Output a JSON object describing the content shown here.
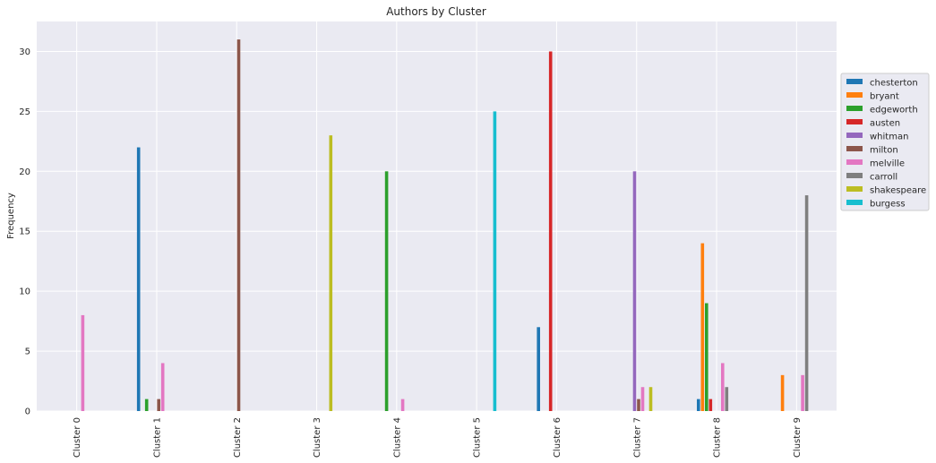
{
  "chart_data": {
    "type": "bar",
    "title": "Authors by Cluster",
    "xlabel": "",
    "ylabel": "Frequency",
    "categories": [
      "Cluster 0",
      "Cluster 1",
      "Cluster 2",
      "Cluster 3",
      "Cluster 4",
      "Cluster 5",
      "Cluster 6",
      "Cluster 7",
      "Cluster 8",
      "Cluster 9"
    ],
    "ylim": [
      0,
      32.5
    ],
    "yticks": [
      0,
      5,
      10,
      15,
      20,
      25,
      30
    ],
    "grid": true,
    "legend_position": "right",
    "background": "#eaeaf2",
    "series": [
      {
        "name": "chesterton",
        "color": "#1f77b4",
        "values": [
          0,
          22,
          0,
          0,
          0,
          0,
          7,
          0,
          1,
          0
        ]
      },
      {
        "name": "bryant",
        "color": "#ff7f0e",
        "values": [
          0,
          0,
          0,
          0,
          0,
          0,
          0,
          0,
          14,
          3
        ]
      },
      {
        "name": "edgeworth",
        "color": "#2ca02c",
        "values": [
          0,
          1,
          0,
          0,
          20,
          0,
          0,
          0,
          9,
          0
        ]
      },
      {
        "name": "austen",
        "color": "#d62728",
        "values": [
          0,
          0,
          0,
          0,
          0,
          0,
          30,
          0,
          1,
          0
        ]
      },
      {
        "name": "whitman",
        "color": "#9467bd",
        "values": [
          0,
          0,
          0,
          0,
          0,
          0,
          0,
          20,
          0,
          0
        ]
      },
      {
        "name": "milton",
        "color": "#8c564b",
        "values": [
          0,
          1,
          31,
          0,
          0,
          0,
          0,
          1,
          0,
          0
        ]
      },
      {
        "name": "melville",
        "color": "#e377c2",
        "values": [
          8,
          4,
          0,
          0,
          1,
          0,
          0,
          2,
          4,
          3
        ]
      },
      {
        "name": "carroll",
        "color": "#7f7f7f",
        "values": [
          0,
          0,
          0,
          0,
          0,
          0,
          0,
          0,
          2,
          18
        ]
      },
      {
        "name": "shakespeare",
        "color": "#bcbd22",
        "values": [
          0,
          0,
          0,
          23,
          0,
          0,
          0,
          2,
          0,
          0
        ]
      },
      {
        "name": "burgess",
        "color": "#17becf",
        "values": [
          0,
          0,
          0,
          0,
          0,
          25,
          0,
          0,
          0,
          0
        ]
      }
    ]
  }
}
